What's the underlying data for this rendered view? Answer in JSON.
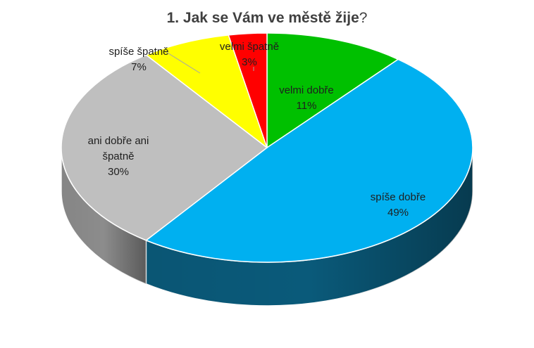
{
  "chart_data": {
    "type": "pie",
    "title": "1. Jak se Vám ve městě žije",
    "title_suffix": "?",
    "slices": [
      {
        "label": "velmi dobře",
        "value": 11,
        "value_label": "11%",
        "color": "#00c000",
        "side_color": "#008a00"
      },
      {
        "label": "spíše dobře",
        "value": 49,
        "value_label": "49%",
        "color": "#00b0f0",
        "side_color": "#0a5a7a"
      },
      {
        "label": "ani dobře ani špatně",
        "value": 30,
        "value_label": "30%",
        "color": "#bfbfbf",
        "side_color": "#8c8c8c"
      },
      {
        "label": "spíše špatně",
        "value": 7,
        "value_label": "7%",
        "color": "#ffff00",
        "side_color": "#b3b300"
      },
      {
        "label": "velmi špatně",
        "value": 3,
        "value_label": "3%",
        "color": "#ff0000",
        "side_color": "#b30000"
      }
    ],
    "style": "3d-pie",
    "start_position": "top, clockwise",
    "legend": "none"
  }
}
